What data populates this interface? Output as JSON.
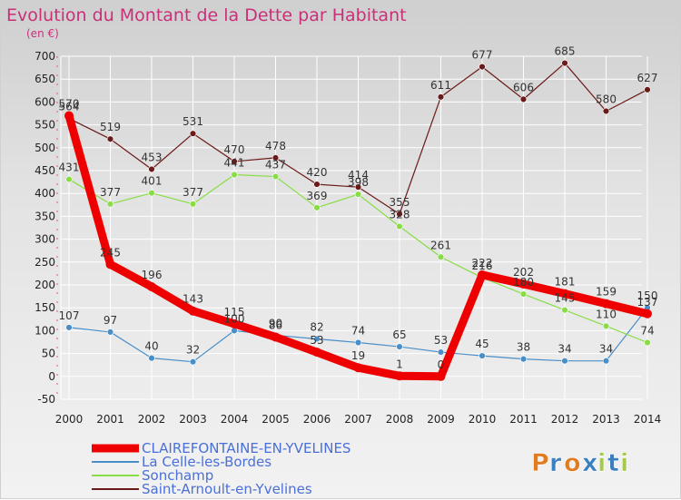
{
  "chart_data": {
    "type": "line",
    "title": "Evolution du Montant de la Dette par Habitant",
    "subtitle": "(en €)",
    "x": [
      "2000",
      "2001",
      "2002",
      "2003",
      "2004",
      "2005",
      "2006",
      "2007",
      "2008",
      "2009",
      "2010",
      "2011",
      "2012",
      "2013",
      "2014"
    ],
    "ylim": [
      -50,
      700
    ],
    "yticks": [
      -50,
      0,
      50,
      100,
      150,
      200,
      250,
      300,
      350,
      400,
      450,
      500,
      550,
      600,
      650,
      700
    ],
    "grid": true,
    "legend_position": "bottom-left",
    "series": [
      {
        "name": "CLAIREFONTAINE-EN-YVELINES",
        "color": "#ee0000",
        "values": [
          570,
          245,
          196,
          143,
          115,
          86,
          53,
          19,
          1,
          0,
          222,
          202,
          181,
          159,
          137
        ]
      },
      {
        "name": "La Celle-les-Bordes",
        "color": "#4a8ec8",
        "values": [
          107,
          97,
          40,
          32,
          100,
          90,
          82,
          74,
          65,
          53,
          45,
          38,
          34,
          34,
          150
        ]
      },
      {
        "name": "Sonchamp",
        "color": "#88dd44",
        "values": [
          431,
          377,
          401,
          377,
          441,
          437,
          369,
          398,
          328,
          261,
          216,
          180,
          145,
          110,
          74
        ]
      },
      {
        "name": "Saint-Arnoult-en-Yvelines",
        "color": "#6b1a1a",
        "values": [
          564,
          519,
          453,
          531,
          470,
          478,
          420,
          414,
          355,
          611,
          677,
          606,
          685,
          580,
          627
        ]
      }
    ]
  },
  "logo": {
    "text": "Proxiti",
    "letter_colors": [
      "#e07b20",
      "#3a7fc0",
      "#e07b20",
      "#3a7fc0",
      "#a6c94b",
      "#3a7fc0",
      "#a6c94b"
    ]
  }
}
